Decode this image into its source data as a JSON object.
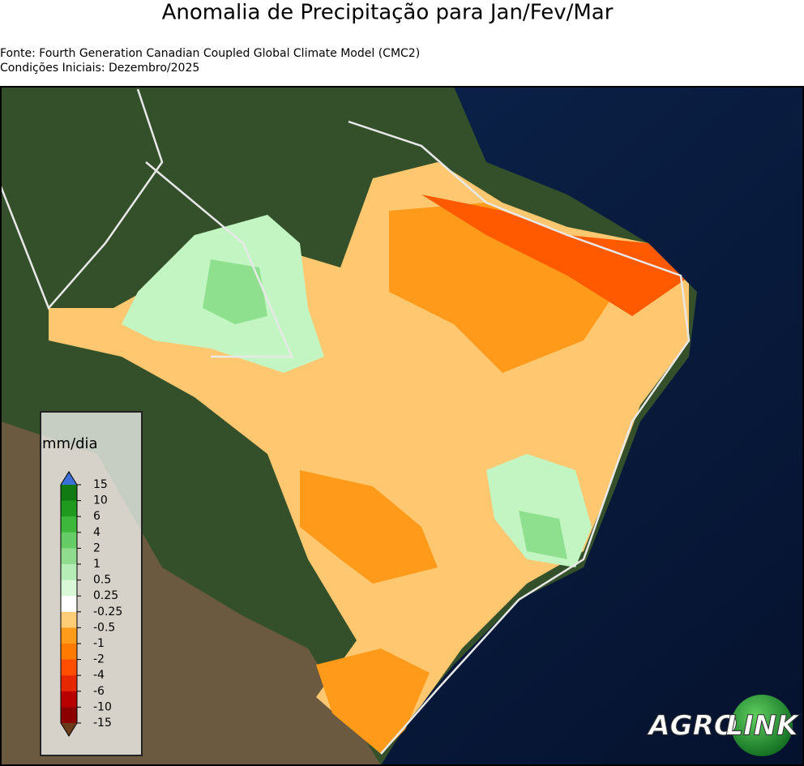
{
  "header": {
    "title": "Anomalia de Precipitação para Jan/Fev/Mar",
    "source": "Fonte: Fourth Generation Canadian Coupled Global Climate Model (CMC2)",
    "initial_conditions": "Condições Iniciais: Dezembro/2025"
  },
  "legend": {
    "label": "mm/dia",
    "ticks": [
      15,
      10,
      6,
      4,
      2,
      1,
      0.5,
      0.25,
      -0.25,
      -0.5,
      -1,
      -2,
      -4,
      -6,
      -10,
      -15
    ],
    "colors": [
      "#127a12",
      "#1f9a1f",
      "#3db83d",
      "#66cc66",
      "#8fdc8f",
      "#b6ecb6",
      "#d8f8d8",
      "#ffffff",
      "#ffcc77",
      "#ff9b1a",
      "#ff7a00",
      "#ff4e00",
      "#e62800",
      "#b80000",
      "#8b0000"
    ],
    "over_color": "#3b6fd8",
    "under_color": "#6b3a1a"
  },
  "logo": {
    "part1": "AGRO",
    "part2": "LINK"
  }
}
